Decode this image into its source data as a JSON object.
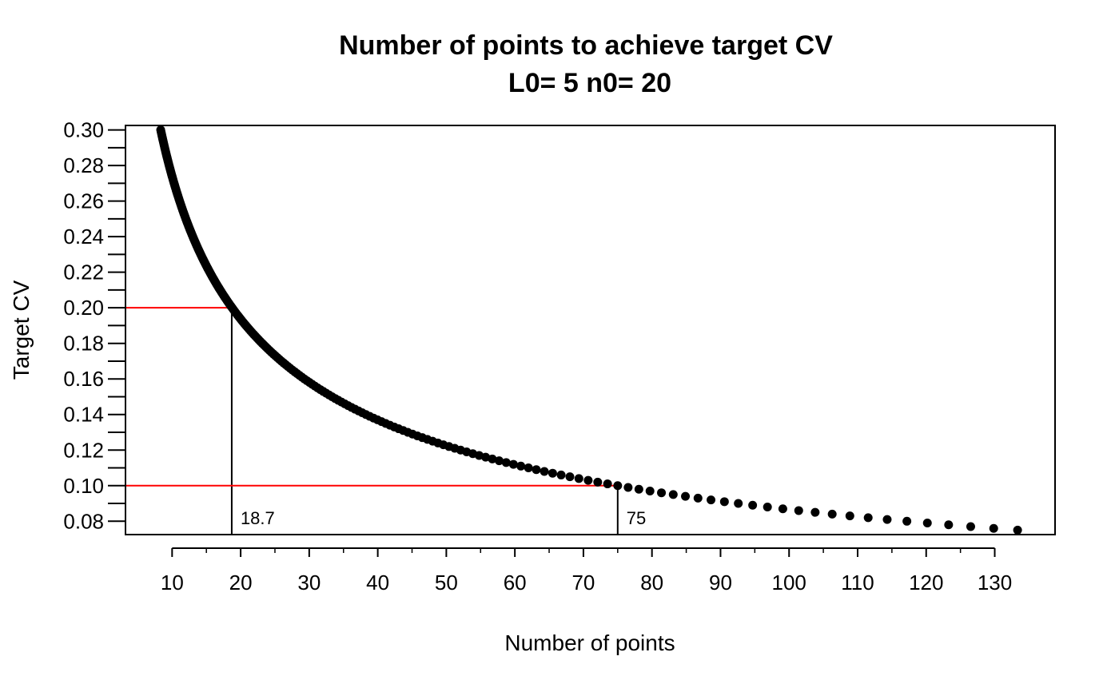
{
  "chart_data": {
    "type": "scatter",
    "title": "Number of points to achieve target CV",
    "subtitle": "L0= 5 n0= 20",
    "xlabel": "Number of points",
    "ylabel": "Target CV",
    "xlim": [
      3.2,
      138.8
    ],
    "ylim": [
      0.0725,
      0.3025
    ],
    "x_ticks": [
      10,
      20,
      30,
      40,
      50,
      60,
      70,
      80,
      90,
      100,
      110,
      120,
      130
    ],
    "y_ticks": [
      0.08,
      0.1,
      0.12,
      0.14,
      0.16,
      0.18,
      0.2,
      0.22,
      0.24,
      0.26,
      0.28,
      0.3
    ],
    "y_tick_labels": [
      "0.08",
      "0.10",
      "0.12",
      "0.14",
      "0.16",
      "0.18",
      "0.20",
      "0.22",
      "0.24",
      "0.26",
      "0.28",
      "0.30"
    ],
    "y_minor_ticks": [
      0.09,
      0.11,
      0.13,
      0.15,
      0.17,
      0.19,
      0.21,
      0.23,
      0.25,
      0.27,
      0.29
    ],
    "x_minor_ticks": [
      15,
      25,
      35,
      45,
      55,
      65,
      75,
      85,
      95,
      105,
      115,
      125
    ],
    "series": [
      {
        "model": "x = k / CV^2",
        "k": 0.75,
        "cv_from": 0.3,
        "cv_to": 0.075,
        "cv_step": -0.001,
        "color": "#000000"
      }
    ],
    "reference_lines": [
      {
        "cv": 0.2,
        "points": 18.7,
        "label": "18.7",
        "h_color": "#ff0000",
        "v_color": "#000000"
      },
      {
        "cv": 0.1,
        "points": 75,
        "label": "75",
        "h_color": "#ff0000",
        "v_color": "#000000"
      }
    ],
    "grid": false,
    "legend": "none"
  }
}
